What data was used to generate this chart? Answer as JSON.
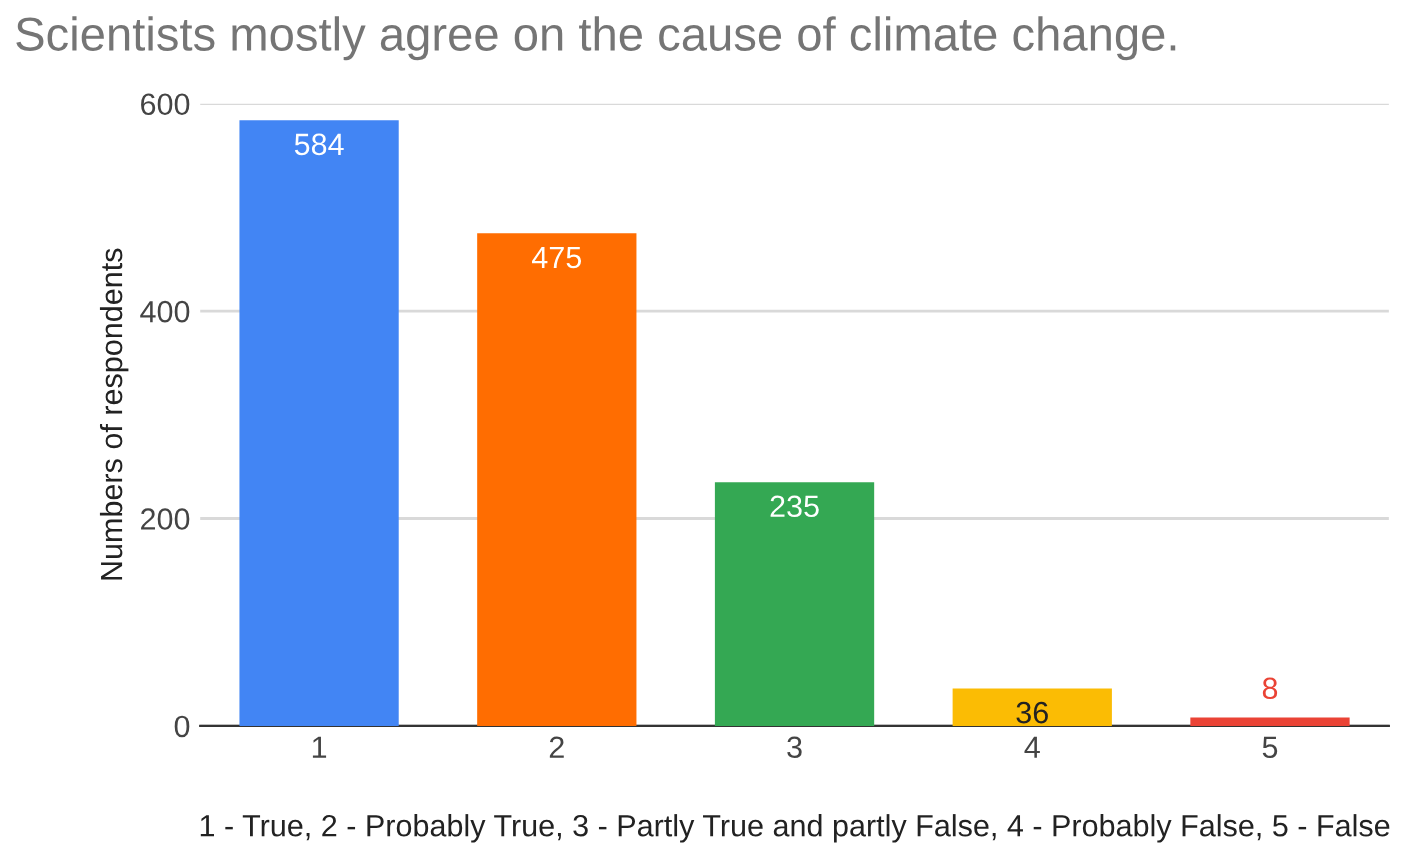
{
  "chart_data": {
    "type": "bar",
    "title": "Scientists mostly agree on the cause of climate change.",
    "xlabel": "1 - True, 2 - Probably True, 3 - Partly True and partly False, 4 - Probably False, 5 - False",
    "ylabel": "Numbers of respondents",
    "categories": [
      "1",
      "2",
      "3",
      "4",
      "5"
    ],
    "values": [
      584,
      475,
      235,
      36,
      8
    ],
    "colors": [
      "#4285f4",
      "#ff6d01",
      "#34a853",
      "#fbbc04",
      "#ea4335"
    ],
    "ylim": [
      0,
      600
    ],
    "yticks": [
      0,
      200,
      400,
      600
    ],
    "grid": "y",
    "data_labels": true
  }
}
